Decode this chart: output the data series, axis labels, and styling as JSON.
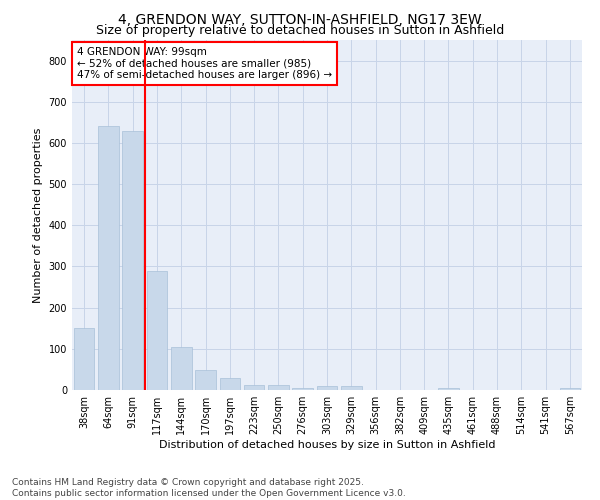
{
  "title1": "4, GRENDON WAY, SUTTON-IN-ASHFIELD, NG17 3EW",
  "title2": "Size of property relative to detached houses in Sutton in Ashfield",
  "xlabel": "Distribution of detached houses by size in Sutton in Ashfield",
  "ylabel": "Number of detached properties",
  "categories": [
    "38sqm",
    "64sqm",
    "91sqm",
    "117sqm",
    "144sqm",
    "170sqm",
    "197sqm",
    "223sqm",
    "250sqm",
    "276sqm",
    "303sqm",
    "329sqm",
    "356sqm",
    "382sqm",
    "409sqm",
    "435sqm",
    "461sqm",
    "488sqm",
    "514sqm",
    "541sqm",
    "567sqm"
  ],
  "values": [
    150,
    640,
    630,
    290,
    105,
    48,
    30,
    12,
    12,
    6,
    9,
    9,
    0,
    0,
    0,
    5,
    0,
    0,
    0,
    0,
    5
  ],
  "bar_color": "#c8d8ea",
  "bar_edge_color": "#a8c0d8",
  "vline_x": 2.5,
  "vline_color": "red",
  "annotation_text": "4 GRENDON WAY: 99sqm\n← 52% of detached houses are smaller (985)\n47% of semi-detached houses are larger (896) →",
  "annotation_box_color": "white",
  "annotation_box_edge": "red",
  "ylim": [
    0,
    850
  ],
  "yticks": [
    0,
    100,
    200,
    300,
    400,
    500,
    600,
    700,
    800
  ],
  "grid_color": "#c8d4e8",
  "background_color": "#e8eef8",
  "footer": "Contains HM Land Registry data © Crown copyright and database right 2025.\nContains public sector information licensed under the Open Government Licence v3.0.",
  "title_fontsize": 10,
  "subtitle_fontsize": 9,
  "axis_label_fontsize": 8,
  "tick_fontsize": 7,
  "annotation_fontsize": 7.5,
  "footer_fontsize": 6.5
}
